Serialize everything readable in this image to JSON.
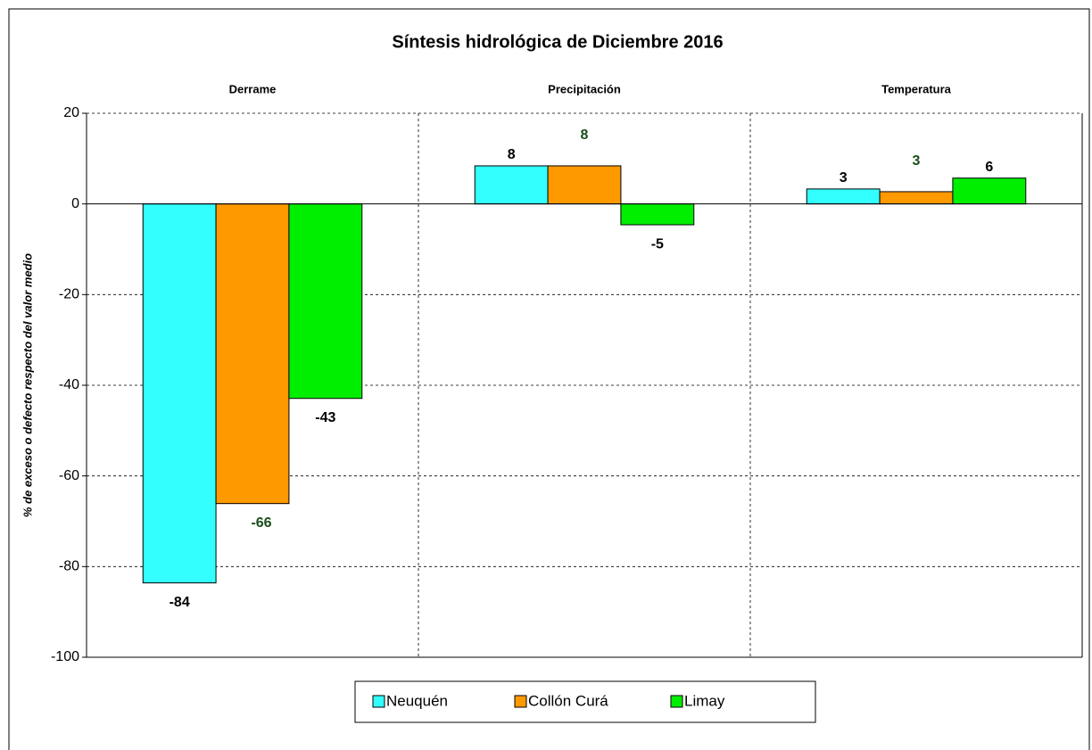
{
  "chart_data": {
    "type": "bar",
    "title": "Síntesis hidrológica de Diciembre 2016",
    "y_label": "% de exceso o defecto respecto del valor medio",
    "categories": [
      "Derrame",
      "Precipitación",
      "Temperatura"
    ],
    "series": [
      {
        "name": "Neuquén",
        "color": "#33ffff",
        "label_color": "#000000",
        "values": [
          -83.6,
          8.4,
          3.3
        ],
        "value_labels": [
          "-84",
          "8",
          "3"
        ]
      },
      {
        "name": "Collón Curá",
        "color": "#ff9900",
        "label_color": "#1a4d1a",
        "values": [
          -66.1,
          8.4,
          2.7
        ],
        "value_labels": [
          "-66",
          "8",
          "3"
        ]
      },
      {
        "name": "Limay",
        "color": "#00ee00",
        "label_color": "#000000",
        "values": [
          -42.9,
          -4.6,
          5.7
        ],
        "value_labels": [
          "-43",
          "-5",
          "6"
        ]
      }
    ],
    "ylim": [
      -100,
      20
    ],
    "yticks": [
      -100,
      -80,
      -60,
      -40,
      -20,
      0,
      20
    ],
    "grid": true,
    "legend": "bottom"
  }
}
